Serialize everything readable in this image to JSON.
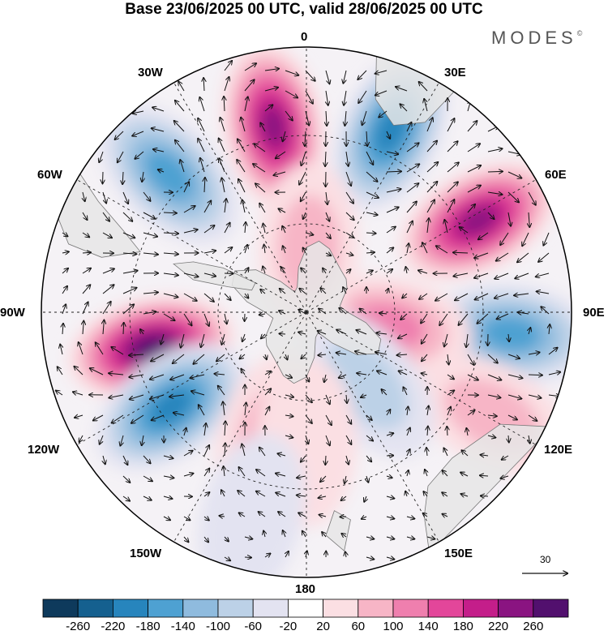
{
  "title": "Base 23/06/2025 00 UTC, valid 28/06/2025 00 UTC",
  "brand": "MODES",
  "brand_mark": "©",
  "longitude_labels": {
    "0": "0",
    "30E": "30E",
    "60E": "60E",
    "90E": "90E",
    "120E": "120E",
    "150E": "150E",
    "180": "180",
    "150W": "150W",
    "120W": "120W",
    "90W": "90W",
    "60W": "60W",
    "30W": "30W"
  },
  "vector_scale": {
    "label": "30"
  },
  "colorbar": {
    "colors": [
      "#0e3a5c",
      "#15608f",
      "#2785bd",
      "#4ea1d2",
      "#8fbbde",
      "#bcd1e7",
      "#e3e3f1",
      "#ffffff",
      "#fbdfe3",
      "#f7b5c6",
      "#ef7fae",
      "#e3469a",
      "#c41e8a",
      "#8a1481",
      "#52106e"
    ],
    "tick_labels": [
      "-260",
      "-220",
      "-180",
      "-140",
      "-100",
      "-60",
      "-20",
      "20",
      "60",
      "100",
      "140",
      "180",
      "220",
      "260"
    ]
  },
  "colors": {
    "land": "#e6e6e6",
    "coast": "#777777",
    "grid": "#222222",
    "vector": "#111111"
  },
  "anomaly_centers": [
    {
      "lon": -103,
      "colat": 27,
      "value": 270
    },
    {
      "lon": -125,
      "colat": 28,
      "value": -200
    },
    {
      "lon": -45,
      "colat": 33,
      "value": -170
    },
    {
      "lon": -10,
      "colat": 32,
      "value": 220
    },
    {
      "lon": 25,
      "colat": 34,
      "value": -180
    },
    {
      "lon": 62,
      "colat": 33,
      "value": 240
    },
    {
      "lon": 96,
      "colat": 35,
      "value": -150
    },
    {
      "lon": 119,
      "colat": 36,
      "value": 90
    },
    {
      "lon": 100,
      "colat": 14,
      "value": 110
    },
    {
      "lon": 140,
      "colat": 16,
      "value": -90
    },
    {
      "lon": -163,
      "colat": 22,
      "value": 70
    },
    {
      "lon": 180,
      "colat": 22,
      "value": 40
    },
    {
      "lon": 2,
      "colat": 11,
      "value": 60
    },
    {
      "lon": -165,
      "colat": 36,
      "value": -50
    }
  ]
}
